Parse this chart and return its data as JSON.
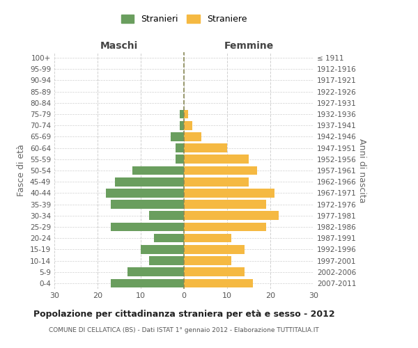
{
  "age_groups": [
    "0-4",
    "5-9",
    "10-14",
    "15-19",
    "20-24",
    "25-29",
    "30-34",
    "35-39",
    "40-44",
    "45-49",
    "50-54",
    "55-59",
    "60-64",
    "65-69",
    "70-74",
    "75-79",
    "80-84",
    "85-89",
    "90-94",
    "95-99",
    "100+"
  ],
  "birth_years": [
    "2007-2011",
    "2002-2006",
    "1997-2001",
    "1992-1996",
    "1987-1991",
    "1982-1986",
    "1977-1981",
    "1972-1976",
    "1967-1971",
    "1962-1966",
    "1957-1961",
    "1952-1956",
    "1947-1951",
    "1942-1946",
    "1937-1941",
    "1932-1936",
    "1927-1931",
    "1922-1926",
    "1917-1921",
    "1912-1916",
    "≤ 1911"
  ],
  "males": [
    17,
    13,
    8,
    10,
    7,
    17,
    8,
    17,
    18,
    16,
    12,
    2,
    2,
    3,
    1,
    1,
    0,
    0,
    0,
    0,
    0
  ],
  "females": [
    16,
    14,
    11,
    14,
    11,
    19,
    22,
    19,
    21,
    15,
    17,
    15,
    10,
    4,
    2,
    1,
    0,
    0,
    0,
    0,
    0
  ],
  "male_color": "#6a9e5e",
  "female_color": "#f5b942",
  "title": "Popolazione per cittadinanza straniera per età e sesso - 2012",
  "subtitle": "COMUNE DI CELLATICA (BS) - Dati ISTAT 1° gennaio 2012 - Elaborazione TUTTITALIA.IT",
  "ylabel_left": "Fasce di età",
  "ylabel_right": "Anni di nascita",
  "xlabel_left": "Maschi",
  "xlabel_right": "Femmine",
  "legend_male": "Stranieri",
  "legend_female": "Straniere",
  "xlim": 30,
  "background_color": "#ffffff",
  "grid_color": "#d0d0d0"
}
